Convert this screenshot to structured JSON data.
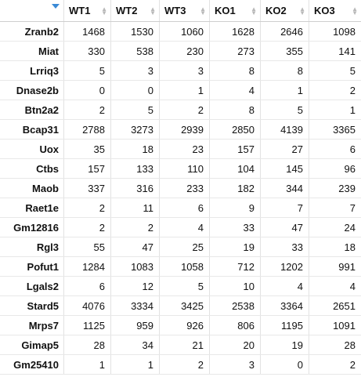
{
  "table": {
    "columns": [
      "",
      "WT1",
      "WT2",
      "WT3",
      "KO1",
      "KO2",
      "KO3"
    ],
    "rows": [
      {
        "gene": "Zranb2",
        "values": [
          "1468",
          "1530",
          "1060",
          "1628",
          "2646",
          "1098"
        ]
      },
      {
        "gene": "Miat",
        "values": [
          "330",
          "538",
          "230",
          "273",
          "355",
          "141"
        ]
      },
      {
        "gene": "Lrriq3",
        "values": [
          "5",
          "3",
          "3",
          "8",
          "8",
          "5"
        ]
      },
      {
        "gene": "Dnase2b",
        "values": [
          "0",
          "0",
          "1",
          "4",
          "1",
          "2"
        ]
      },
      {
        "gene": "Btn2a2",
        "values": [
          "2",
          "5",
          "2",
          "8",
          "5",
          "1"
        ]
      },
      {
        "gene": "Bcap31",
        "values": [
          "2788",
          "3273",
          "2939",
          "2850",
          "4139",
          "3365"
        ]
      },
      {
        "gene": "Uox",
        "values": [
          "35",
          "18",
          "23",
          "157",
          "27",
          "6"
        ]
      },
      {
        "gene": "Ctbs",
        "values": [
          "157",
          "133",
          "110",
          "104",
          "145",
          "96"
        ]
      },
      {
        "gene": "Maob",
        "values": [
          "337",
          "316",
          "233",
          "182",
          "344",
          "239"
        ]
      },
      {
        "gene": "Raet1e",
        "values": [
          "2",
          "11",
          "6",
          "9",
          "7",
          "7"
        ]
      },
      {
        "gene": "Gm12816",
        "values": [
          "2",
          "2",
          "4",
          "33",
          "47",
          "24"
        ]
      },
      {
        "gene": "Rgl3",
        "values": [
          "55",
          "47",
          "25",
          "19",
          "33",
          "18"
        ]
      },
      {
        "gene": "Pofut1",
        "values": [
          "1284",
          "1083",
          "1058",
          "712",
          "1202",
          "991"
        ]
      },
      {
        "gene": "Lgals2",
        "values": [
          "6",
          "12",
          "5",
          "10",
          "4",
          "4"
        ]
      },
      {
        "gene": "Stard5",
        "values": [
          "4076",
          "3334",
          "3425",
          "2538",
          "3364",
          "2651"
        ]
      },
      {
        "gene": "Mrps7",
        "values": [
          "1125",
          "959",
          "926",
          "806",
          "1195",
          "1091"
        ]
      },
      {
        "gene": "Gimap5",
        "values": [
          "28",
          "34",
          "21",
          "20",
          "19",
          "28"
        ]
      },
      {
        "gene": "Gm25410",
        "values": [
          "1",
          "1",
          "2",
          "3",
          "0",
          "2"
        ]
      }
    ]
  },
  "colors": {
    "sort_arrow": "#3a8ad6",
    "grid": "#e2e2e2"
  }
}
